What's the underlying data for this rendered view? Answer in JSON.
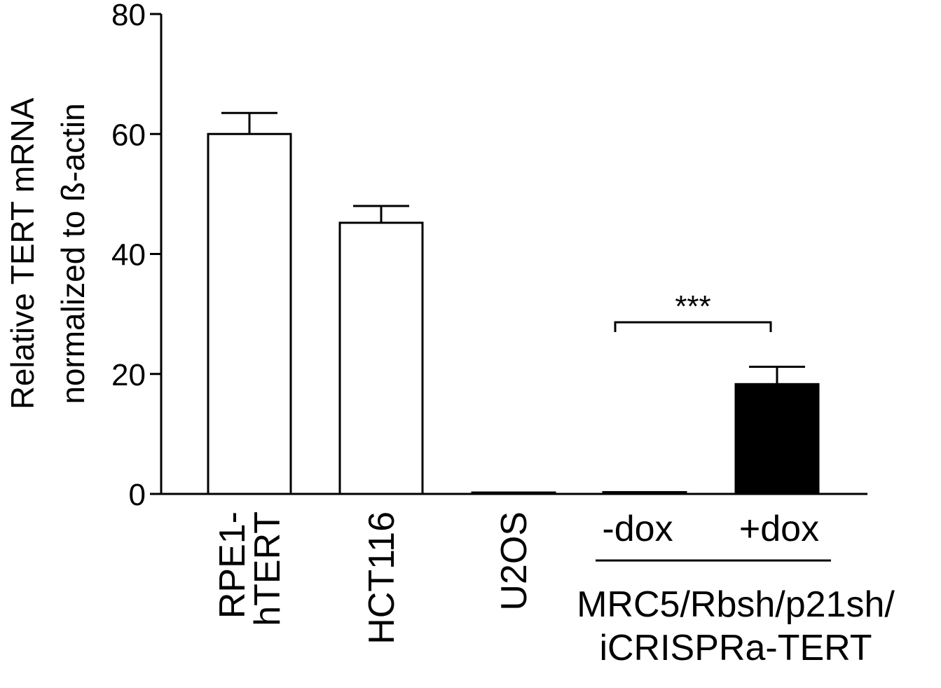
{
  "chart_data": {
    "type": "bar",
    "categories": [
      "RPE1-hTERT",
      "HCT116",
      "U2OS",
      "-dox",
      "+dox"
    ],
    "category_label_lines": [
      [
        "RPE1-",
        "hTERT"
      ],
      [
        "HCT116"
      ],
      [
        "U2OS"
      ],
      [
        "-dox"
      ],
      [
        "+dox"
      ]
    ],
    "values": [
      60,
      45.2,
      0.2,
      0.3,
      18.3
    ],
    "errors": [
      3.5,
      2.8,
      0,
      0,
      2.9
    ],
    "fills": [
      "#ffffff",
      "#ffffff",
      "#ffffff",
      "#ffffff",
      "#000000"
    ],
    "ylabel_lines": [
      "Relative TERT mRNA",
      "normalized to ß-actin"
    ],
    "yticks": [
      0,
      20,
      40,
      60,
      80
    ],
    "ylim": [
      0,
      80
    ],
    "group_label_lines": [
      "MRC5/Rbsh/p21sh/",
      "iCRISPRa-TERT"
    ],
    "significance": {
      "from_category": "-dox",
      "to_category": "+dox",
      "label": "***"
    }
  }
}
